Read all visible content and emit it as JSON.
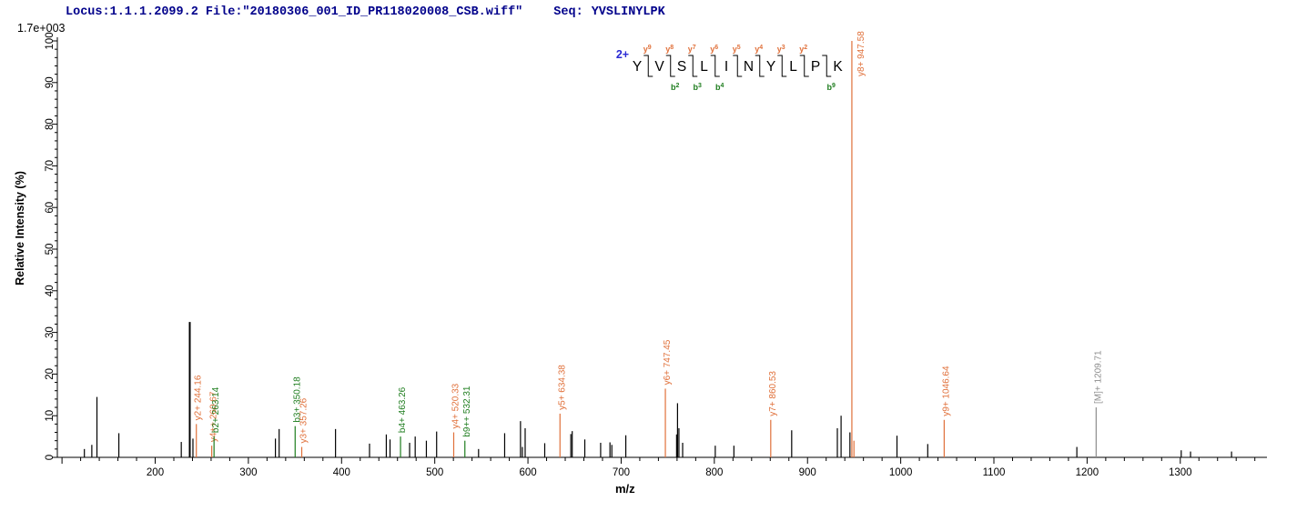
{
  "header": {
    "locus_file": "Locus:1.1.1.2099.2 File:\"20180306_001_ID_PR118020008_CSB.wiff\"",
    "seq_label": "Seq:",
    "sequence": "YVSLINYLPK"
  },
  "colors": {
    "y_ion": "#e0703a",
    "b_ion": "#1e7d1e",
    "precursor": "#8c8c8c",
    "peak": "#000000",
    "axis": "#000000",
    "header_text": "#00008b",
    "charge_label": "#2a2ad4"
  },
  "peptide_annotation": {
    "charge_label": "2+",
    "residues": [
      "Y",
      "V",
      "S",
      "L",
      "I",
      "N",
      "Y",
      "L",
      "P",
      "K"
    ],
    "y_ion_marks": [
      {
        "divider": 1,
        "label": "y9"
      },
      {
        "divider": 2,
        "label": "y8"
      },
      {
        "divider": 3,
        "label": "y7"
      },
      {
        "divider": 4,
        "label": "y6"
      },
      {
        "divider": 5,
        "label": "y5"
      },
      {
        "divider": 6,
        "label": "y4"
      },
      {
        "divider": 7,
        "label": "y3"
      },
      {
        "divider": 8,
        "label": "y2"
      }
    ],
    "b_ion_marks": [
      {
        "divider": 2,
        "label": "b2"
      },
      {
        "divider": 3,
        "label": "b3"
      },
      {
        "divider": 4,
        "label": "b4"
      },
      {
        "divider": 9,
        "label": "b9"
      }
    ]
  },
  "chart_data": {
    "type": "bar",
    "subtype": "mass-spectrum",
    "xlabel": "m/z",
    "ylabel": "Relative  Intensity  (%)",
    "intensity_scale_label": "1.7e+003",
    "xlim": [
      95,
      1393
    ],
    "ylim": [
      0,
      100
    ],
    "x_major_ticks": [
      200,
      300,
      400,
      500,
      600,
      700,
      800,
      900,
      1000,
      1100,
      1200,
      1300
    ],
    "x_minor_tick_step": 20,
    "y_major_tick_step": 10,
    "y_minor_tick_step": 2,
    "grid": false,
    "legend": "none",
    "peaks": [
      {
        "mz": 124,
        "pct": 2,
        "t": "u"
      },
      {
        "mz": 132,
        "pct": 3,
        "t": "u"
      },
      {
        "mz": 137.5,
        "pct": 14.5,
        "t": "u"
      },
      {
        "mz": 161,
        "pct": 5.8,
        "t": "u"
      },
      {
        "mz": 228,
        "pct": 3.7,
        "t": "u"
      },
      {
        "mz": 237.1,
        "pct": 32.5,
        "t": "u",
        "w": 2
      },
      {
        "mz": 240.5,
        "pct": 4.5,
        "t": "u"
      },
      {
        "mz": 244.16,
        "pct": 8,
        "t": "y",
        "label": "y2+ 244.16"
      },
      {
        "mz": 260.67,
        "pct": 2.8,
        "t": "y",
        "label": "y4++ 260.67"
      },
      {
        "mz": 263.14,
        "pct": 5,
        "t": "b",
        "label": "b2+ 263.14"
      },
      {
        "mz": 329,
        "pct": 4.5,
        "t": "u"
      },
      {
        "mz": 333,
        "pct": 6.8,
        "t": "u"
      },
      {
        "mz": 350.18,
        "pct": 7.5,
        "t": "b",
        "label": "b3+ 350.18"
      },
      {
        "mz": 357.26,
        "pct": 2.5,
        "t": "y",
        "label": "y3+ 357.26"
      },
      {
        "mz": 393.5,
        "pct": 6.8,
        "t": "u"
      },
      {
        "mz": 430,
        "pct": 3.3,
        "t": "u"
      },
      {
        "mz": 448,
        "pct": 5.5,
        "t": "u"
      },
      {
        "mz": 452,
        "pct": 4.3,
        "t": "u"
      },
      {
        "mz": 463.26,
        "pct": 5,
        "t": "b",
        "label": "b4+ 463.26"
      },
      {
        "mz": 473,
        "pct": 3.5,
        "t": "u"
      },
      {
        "mz": 479,
        "pct": 5,
        "t": "u"
      },
      {
        "mz": 491,
        "pct": 4,
        "t": "u"
      },
      {
        "mz": 502,
        "pct": 6.2,
        "t": "u"
      },
      {
        "mz": 520.33,
        "pct": 6,
        "t": "y",
        "label": "y4+ 520.33"
      },
      {
        "mz": 532.31,
        "pct": 4,
        "t": "b",
        "label": "b9++ 532.31"
      },
      {
        "mz": 547,
        "pct": 2,
        "t": "u"
      },
      {
        "mz": 575,
        "pct": 5.8,
        "t": "u"
      },
      {
        "mz": 592,
        "pct": 8.7,
        "t": "u"
      },
      {
        "mz": 594,
        "pct": 2.5,
        "t": "u"
      },
      {
        "mz": 597,
        "pct": 7,
        "t": "u"
      },
      {
        "mz": 618,
        "pct": 3.4,
        "t": "u"
      },
      {
        "mz": 634.38,
        "pct": 10.5,
        "t": "y",
        "label": "y5+ 634.38"
      },
      {
        "mz": 646,
        "pct": 5.6,
        "t": "u"
      },
      {
        "mz": 647.5,
        "pct": 6.3,
        "t": "u"
      },
      {
        "mz": 661,
        "pct": 4.3,
        "t": "u"
      },
      {
        "mz": 678,
        "pct": 3.5,
        "t": "u"
      },
      {
        "mz": 688,
        "pct": 3.6,
        "t": "u"
      },
      {
        "mz": 690,
        "pct": 3,
        "t": "u"
      },
      {
        "mz": 705,
        "pct": 5.3,
        "t": "u"
      },
      {
        "mz": 747.45,
        "pct": 16.5,
        "t": "y",
        "label": "y6+ 747.45"
      },
      {
        "mz": 759.5,
        "pct": 5.5,
        "t": "u"
      },
      {
        "mz": 760.5,
        "pct": 13,
        "t": "u"
      },
      {
        "mz": 762,
        "pct": 7,
        "t": "u"
      },
      {
        "mz": 766,
        "pct": 3.5,
        "t": "u"
      },
      {
        "mz": 801,
        "pct": 2.8,
        "t": "u"
      },
      {
        "mz": 821,
        "pct": 2.8,
        "t": "u"
      },
      {
        "mz": 860.53,
        "pct": 9,
        "t": "y",
        "label": "y7+ 860.53"
      },
      {
        "mz": 883,
        "pct": 6.5,
        "t": "u"
      },
      {
        "mz": 932,
        "pct": 7,
        "t": "u"
      },
      {
        "mz": 936,
        "pct": 10,
        "t": "u"
      },
      {
        "mz": 945.5,
        "pct": 6,
        "t": "u"
      },
      {
        "mz": 947.58,
        "pct": 100,
        "t": "y",
        "label": "y8+ 947.58"
      },
      {
        "mz": 949.8,
        "pct": 4,
        "t": "y"
      },
      {
        "mz": 996,
        "pct": 5.2,
        "t": "u"
      },
      {
        "mz": 1029,
        "pct": 3.2,
        "t": "u"
      },
      {
        "mz": 1046.64,
        "pct": 9,
        "t": "y",
        "label": "y9+ 1046.64"
      },
      {
        "mz": 1189,
        "pct": 2.5,
        "t": "u"
      },
      {
        "mz": 1209.71,
        "pct": 12,
        "t": "M",
        "label": "[M]+ 1209.71"
      },
      {
        "mz": 1301,
        "pct": 1.7,
        "t": "u"
      },
      {
        "mz": 1311,
        "pct": 1.4,
        "t": "u"
      },
      {
        "mz": 1355,
        "pct": 1.4,
        "t": "u"
      }
    ]
  }
}
